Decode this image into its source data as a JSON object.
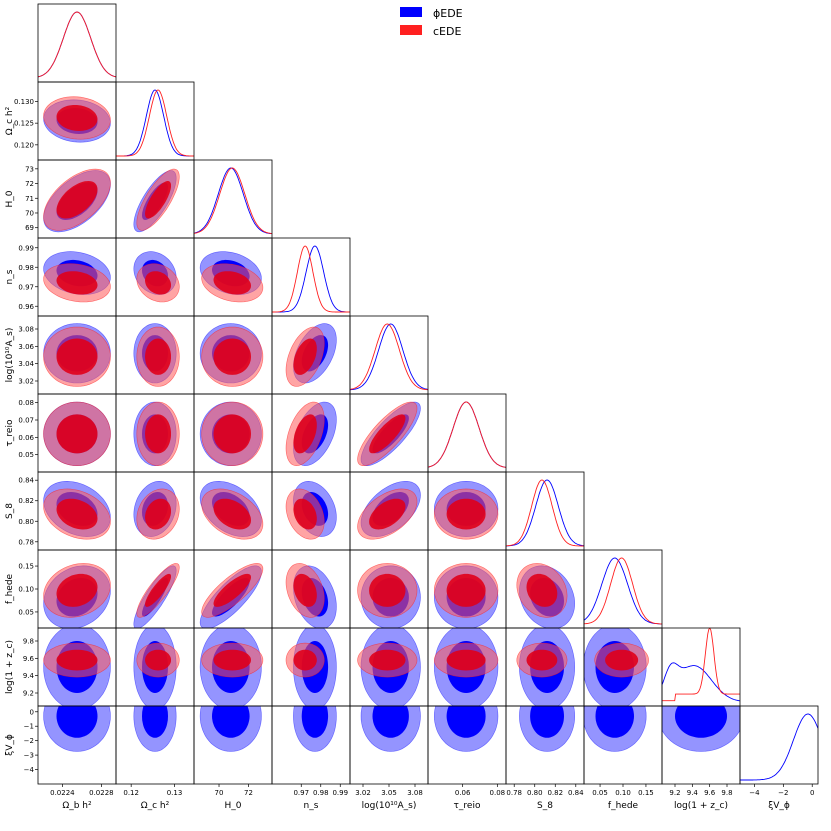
{
  "chart_data": {
    "type": "triangle-corner-plot",
    "title": "",
    "legend_placement": "top-center",
    "series": [
      {
        "name": "ϕEDE",
        "color": "#0000ff"
      },
      {
        "name": "cEDE",
        "color": "#ff2020"
      }
    ],
    "parameters": [
      {
        "key": "omega_b",
        "xlabel": "Ω_b h²",
        "ylabel": "",
        "xticks": [
          "0.0224",
          "0.0228"
        ],
        "yticks": [],
        "range": [
          0.02215,
          0.02295
        ],
        "ticks_num": [
          0.0224,
          0.0228
        ],
        "mean": {
          "phi": 0.02255,
          "c": 0.02255
        },
        "sigma": {
          "phi": 0.00014,
          "c": 0.00014
        }
      },
      {
        "key": "omega_c",
        "xlabel": "Ω_c h²",
        "ylabel": "Ω_c h²",
        "xticks": [
          "0.12",
          "0.13"
        ],
        "yticks": [
          "0.120",
          "0.125",
          "0.130"
        ],
        "range": [
          0.1165,
          0.1345
        ],
        "ticks_num": [
          0.12,
          0.13
        ],
        "yticks_num": [
          0.12,
          0.125,
          0.13
        ],
        "mean": {
          "phi": 0.1255,
          "c": 0.1262
        },
        "sigma": {
          "phi": 0.002,
          "c": 0.002
        }
      },
      {
        "key": "H0",
        "xlabel": "H_0",
        "ylabel": "H_0",
        "xticks": [
          "70",
          "72"
        ],
        "yticks": [
          "69",
          "70",
          "71",
          "72",
          "73"
        ],
        "range": [
          68.3,
          73.6
        ],
        "ticks_num": [
          70,
          72
        ],
        "yticks_num": [
          69,
          70,
          71,
          72,
          73
        ],
        "mean": {
          "phi": 70.8,
          "c": 70.9
        },
        "sigma": {
          "phi": 0.85,
          "c": 0.85
        }
      },
      {
        "key": "n_s",
        "xlabel": "n_s",
        "ylabel": "n_s",
        "xticks": [
          "0.97",
          "0.98",
          "0.99"
        ],
        "yticks": [
          "0.96",
          "0.97",
          "0.98",
          "0.99"
        ],
        "range": [
          0.955,
          0.995
        ],
        "ticks_num": [
          0.97,
          0.98,
          0.99
        ],
        "yticks_num": [
          0.96,
          0.97,
          0.98,
          0.99
        ],
        "mean": {
          "phi": 0.977,
          "c": 0.972
        },
        "sigma": {
          "phi": 0.0045,
          "c": 0.004
        }
      },
      {
        "key": "log10As",
        "xlabel": "log(10¹⁰A_s)",
        "ylabel": "log(10¹⁰A_s)",
        "xticks": [
          "3.02",
          "3.05",
          "3.08"
        ],
        "yticks": [
          "3.02",
          "3.04",
          "3.06",
          "3.08"
        ],
        "range": [
          3.005,
          3.095
        ],
        "ticks_num": [
          3.02,
          3.05,
          3.08
        ],
        "yticks_num": [
          3.02,
          3.04,
          3.06,
          3.08
        ],
        "mean": {
          "phi": 3.052,
          "c": 3.048
        },
        "sigma": {
          "phi": 0.014,
          "c": 0.014
        }
      },
      {
        "key": "tau_reio",
        "xlabel": "τ_reio",
        "ylabel": "τ_reio",
        "xticks": [
          "0.06",
          "0.08"
        ],
        "yticks": [
          "0.05",
          "0.06",
          "0.07",
          "0.08"
        ],
        "range": [
          0.04,
          0.085
        ],
        "ticks_num": [
          0.06,
          0.08
        ],
        "yticks_num": [
          0.05,
          0.06,
          0.07,
          0.08
        ],
        "mean": {
          "phi": 0.062,
          "c": 0.062
        },
        "sigma": {
          "phi": 0.0075,
          "c": 0.0075
        }
      },
      {
        "key": "S8",
        "xlabel": "S_8",
        "ylabel": "S_8",
        "xticks": [
          "0.78",
          "0.80",
          "0.82",
          "0.84"
        ],
        "yticks": [
          "0.78",
          "0.80",
          "0.82",
          "0.84"
        ],
        "range": [
          0.772,
          0.848
        ],
        "ticks_num": [
          0.78,
          0.8,
          0.82,
          0.84
        ],
        "yticks_num": [
          0.78,
          0.8,
          0.82,
          0.84
        ],
        "mean": {
          "phi": 0.812,
          "c": 0.807
        },
        "sigma": {
          "phi": 0.011,
          "c": 0.01
        }
      },
      {
        "key": "f_hede",
        "xlabel": "f_hede",
        "ylabel": "f_hede",
        "xticks": [
          "0.05",
          "0.10",
          "0.15"
        ],
        "yticks": [
          "0.05",
          "0.10",
          "0.15"
        ],
        "range": [
          0.015,
          0.185
        ],
        "ticks_num": [
          0.05,
          0.1,
          0.15
        ],
        "yticks_num": [
          0.05,
          0.1,
          0.15
        ],
        "mean": {
          "phi": 0.082,
          "c": 0.097
        },
        "sigma": {
          "phi": 0.028,
          "c": 0.024
        }
      },
      {
        "key": "log1pzc",
        "xlabel": "log(1 + z_c)",
        "ylabel": "log(1 + z_c)",
        "xticks": [
          "9.2",
          "9.4",
          "9.6",
          "9.8"
        ],
        "yticks": [
          "9.2",
          "9.4",
          "9.6",
          "9.8"
        ],
        "range": [
          9.05,
          9.95
        ],
        "ticks_num": [
          9.2,
          9.4,
          9.6,
          9.8
        ],
        "yticks_num": [
          9.2,
          9.4,
          9.6,
          9.8
        ],
        "mean": {
          "phi": 9.5,
          "c": 9.58
        },
        "sigma": {
          "phi": 0.2,
          "c": 0.08
        }
      },
      {
        "key": "xiVphi",
        "xlabel": "ξV_ϕ",
        "ylabel": "ξV_ϕ",
        "xticks": [
          "−4",
          "−2",
          "0"
        ],
        "yticks": [
          "−4",
          "−3",
          "−2",
          "−1",
          "0"
        ],
        "range": [
          -5.0,
          0.4
        ],
        "ticks_num": [
          -4,
          -2,
          0
        ],
        "yticks_num": [
          -4,
          -3,
          -2,
          -1,
          0
        ],
        "mean": {
          "phi": -0.3,
          "c": null
        },
        "sigma": {
          "phi": 1.0,
          "c": null
        }
      }
    ],
    "correlations": {
      "1-0": -0.1,
      "2-0": 0.55,
      "2-1": 0.75,
      "3-0": -0.2,
      "3-1": -0.2,
      "3-2": -0.25,
      "4-0": 0.0,
      "4-1": 0.0,
      "4-2": 0.0,
      "4-3": 0.45,
      "5-0": 0.0,
      "5-1": 0.0,
      "5-2": 0.0,
      "5-3": 0.45,
      "5-4": 0.8,
      "6-0": -0.3,
      "6-1": 0.2,
      "6-2": -0.4,
      "6-3": -0.3,
      "6-4": 0.5,
      "6-5": 0.0,
      "7-0": 0.2,
      "7-1": 0.85,
      "7-2": 0.8,
      "7-3": -0.3,
      "7-4": 0.0,
      "7-5": 0.0,
      "7-6": -0.2
    }
  }
}
